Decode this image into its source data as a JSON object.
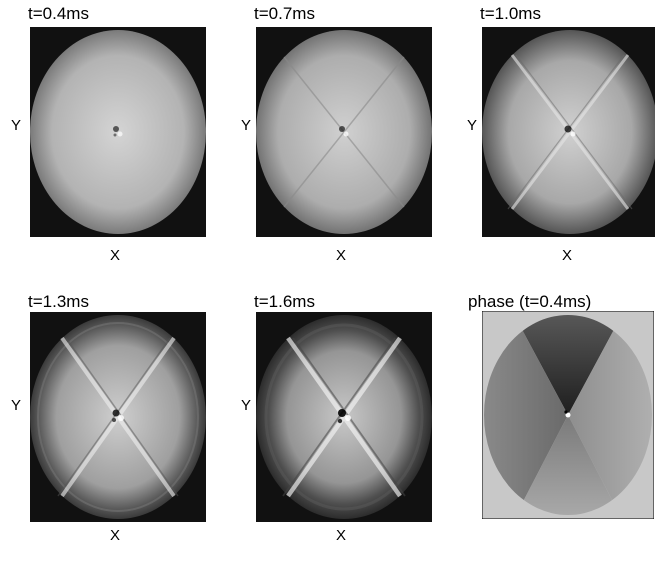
{
  "figure": {
    "panels": [
      {
        "id": "p1",
        "title": "t=0.4ms",
        "xlabel": "X",
        "ylabel": "Y",
        "kind": "amplitude",
        "time_ms": 0.4
      },
      {
        "id": "p2",
        "title": "t=0.7ms",
        "xlabel": "X",
        "ylabel": "Y",
        "kind": "amplitude",
        "time_ms": 0.7
      },
      {
        "id": "p3",
        "title": "t=1.0ms",
        "xlabel": "X",
        "ylabel": "Y",
        "kind": "amplitude",
        "time_ms": 1.0
      },
      {
        "id": "p4",
        "title": "t=1.3ms",
        "xlabel": "X",
        "ylabel": "Y",
        "kind": "amplitude",
        "time_ms": 1.3
      },
      {
        "id": "p5",
        "title": "t=1.6ms",
        "xlabel": "X",
        "ylabel": "Y",
        "kind": "amplitude",
        "time_ms": 1.6
      },
      {
        "id": "p6",
        "title": "phase (t=0.4ms)",
        "kind": "phase",
        "time_ms": 0.4
      }
    ],
    "colors": {
      "background": "#ffffff",
      "phase_background": "#c8c8c8",
      "frame": "#000000"
    }
  }
}
